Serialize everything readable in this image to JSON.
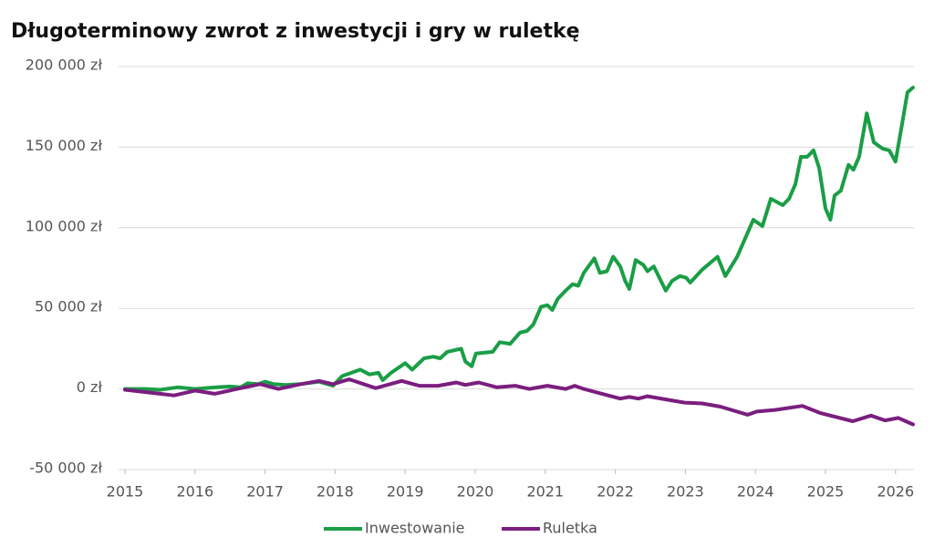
{
  "chart_data": {
    "type": "line",
    "title": "Długoterminowy zwrot z inwestycji i gry w ruletkę",
    "xlim": [
      2015,
      2026.25
    ],
    "xticks": [
      2015,
      2016,
      2017,
      2018,
      2019,
      2020,
      2021,
      2022,
      2023,
      2024,
      2025,
      2026
    ],
    "ylim": [
      -50000,
      200000
    ],
    "yticks": [
      {
        "value": -50000,
        "label": "-50 000 zł"
      },
      {
        "value": 0,
        "label": "0 zł"
      },
      {
        "value": 50000,
        "label": "50 000 zł"
      },
      {
        "value": 100000,
        "label": "100 000 zł"
      },
      {
        "value": 150000,
        "label": "150 000 zł"
      },
      {
        "value": 200000,
        "label": "200 000 zł"
      }
    ],
    "grid": true,
    "legend": "bottom",
    "series": [
      {
        "name": "Inwestowanie",
        "color": "#1a9e46",
        "x": [
          2015,
          2015.3,
          2015.5,
          2015.75,
          2016,
          2016.3,
          2016.5,
          2016.65,
          2016.75,
          2016.9,
          2017,
          2017.12,
          2017.3,
          2017.5,
          2017.77,
          2017.97,
          2018.1,
          2018.36,
          2018.49,
          2018.62,
          2018.68,
          2018.8,
          2019,
          2019.1,
          2019.27,
          2019.4,
          2019.5,
          2019.6,
          2019.8,
          2019.86,
          2019.95,
          2020.01,
          2020.25,
          2020.35,
          2020.5,
          2020.64,
          2020.74,
          2020.83,
          2020.94,
          2021.03,
          2021.1,
          2021.18,
          2021.29,
          2021.39,
          2021.47,
          2021.55,
          2021.7,
          2021.78,
          2021.88,
          2021.97,
          2022.07,
          2022.14,
          2022.2,
          2022.29,
          2022.4,
          2022.46,
          2022.55,
          2022.72,
          2022.81,
          2022.92,
          2023.01,
          2023.07,
          2023.24,
          2023.46,
          2023.57,
          2023.74,
          2023.97,
          2024.1,
          2024.22,
          2024.39,
          2024.48,
          2024.57,
          2024.65,
          2024.74,
          2024.83,
          2024.91,
          2025,
          2025.07,
          2025.13,
          2025.22,
          2025.33,
          2025.4,
          2025.48,
          2025.59,
          2025.69,
          2025.82,
          2025.91,
          2026,
          2026.1,
          2026.17,
          2026.25
        ],
        "values": [
          0,
          0,
          -500,
          1000,
          0,
          1000,
          1500,
          1000,
          3500,
          3000,
          4500,
          3000,
          2500,
          3000,
          4500,
          2000,
          8000,
          12000,
          9000,
          10000,
          5500,
          10000,
          16000,
          12000,
          19000,
          20000,
          19000,
          23000,
          25000,
          17000,
          14000,
          22000,
          23000,
          29000,
          28000,
          35000,
          36000,
          40000,
          51000,
          52000,
          49000,
          56000,
          61000,
          65000,
          64000,
          72000,
          81000,
          72000,
          73000,
          82000,
          76000,
          67000,
          62000,
          80000,
          77000,
          73000,
          76000,
          61000,
          67000,
          70000,
          69000,
          66000,
          74000,
          82000,
          70000,
          82000,
          105000,
          101000,
          118000,
          114000,
          118000,
          127000,
          144000,
          144000,
          148000,
          137000,
          112000,
          105000,
          120000,
          123000,
          139000,
          136000,
          144000,
          171000,
          153000,
          149000,
          148000,
          141000,
          166000,
          184000,
          187000
        ]
      },
      {
        "name": "Ruletka",
        "color": "#7b1e7f",
        "x": [
          2015,
          2015.3,
          2015.5,
          2015.7,
          2016,
          2016.28,
          2016.6,
          2016.93,
          2017.19,
          2017.51,
          2017.77,
          2017.97,
          2018.2,
          2018.58,
          2018.95,
          2019.2,
          2019.47,
          2019.73,
          2019.86,
          2020.05,
          2020.31,
          2020.57,
          2020.77,
          2021.03,
          2021.29,
          2021.42,
          2021.55,
          2021.81,
          2022.07,
          2022.2,
          2022.33,
          2022.46,
          2022.79,
          2022.99,
          2023.24,
          2023.5,
          2023.89,
          2024.02,
          2024.28,
          2024.67,
          2024.93,
          2025.39,
          2025.65,
          2025.85,
          2026.04,
          2026.25
        ],
        "values": [
          -500,
          -2000,
          -3000,
          -4000,
          -1000,
          -3000,
          0,
          3000,
          0,
          3000,
          5000,
          3000,
          6000,
          500,
          5000,
          2000,
          2000,
          4000,
          2500,
          4000,
          1000,
          2000,
          0,
          2000,
          0,
          2000,
          0,
          -3000,
          -6000,
          -5000,
          -6000,
          -4500,
          -7000,
          -8500,
          -9000,
          -11000,
          -16000,
          -14000,
          -13000,
          -10500,
          -15000,
          -20000,
          -16500,
          -19500,
          -18000,
          -22000
        ]
      }
    ]
  }
}
